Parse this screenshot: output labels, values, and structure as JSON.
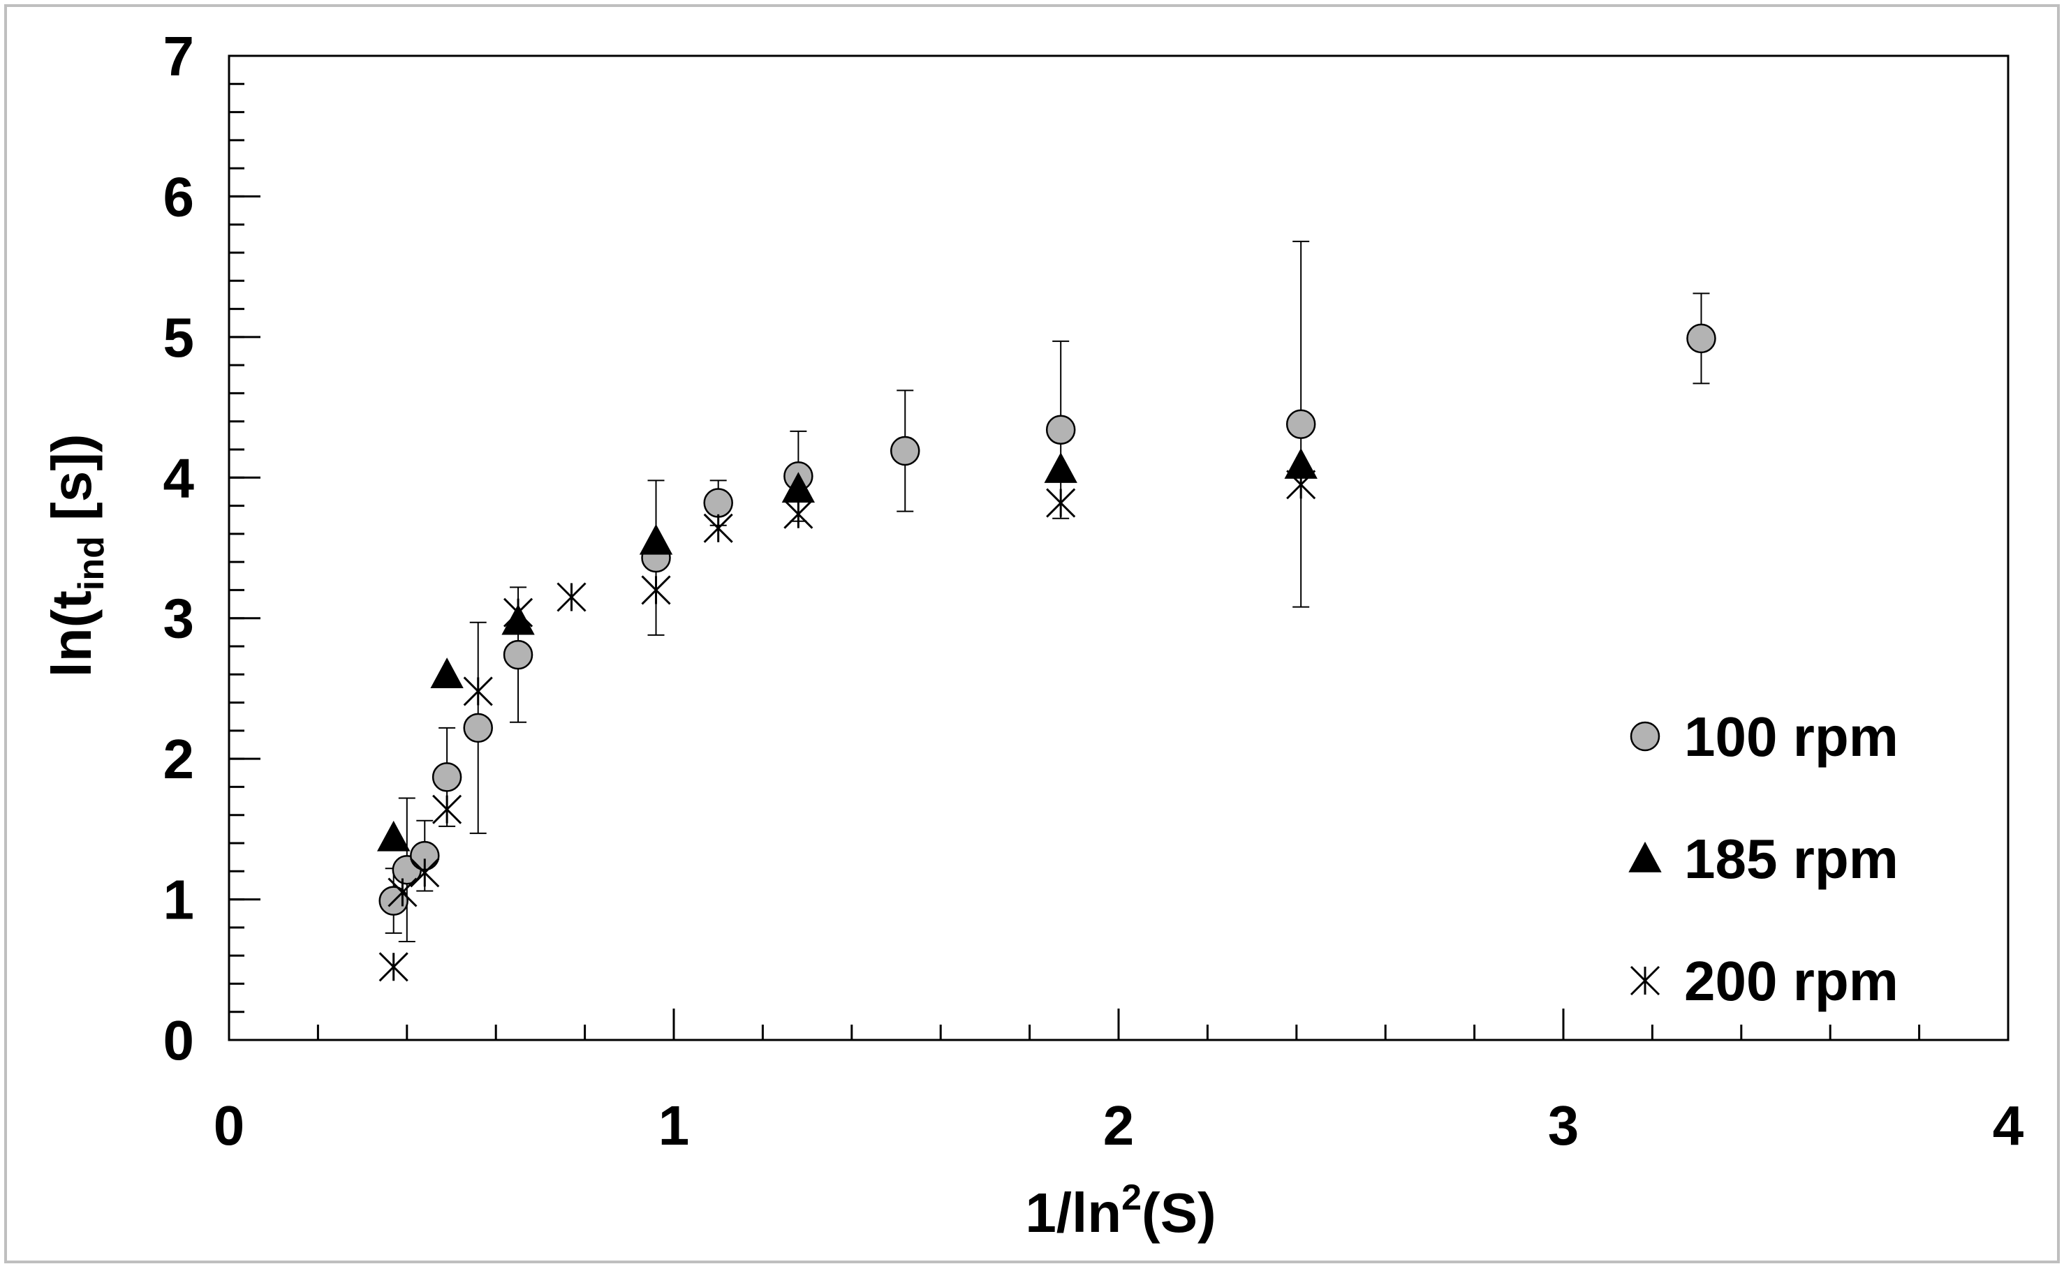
{
  "chart_data": {
    "type": "scatter",
    "xlabel": {
      "main": "1/ln",
      "sup": "2",
      "tail": "(S)"
    },
    "ylabel": {
      "main": "ln(t",
      "sub": "ind",
      "tail": " [s])"
    },
    "xlim": [
      0,
      4
    ],
    "ylim": [
      0,
      7
    ],
    "x_ticks": [
      0,
      1,
      2,
      3,
      4
    ],
    "y_ticks": [
      0,
      1,
      2,
      3,
      4,
      5,
      6,
      7
    ],
    "x_tick_labels": [
      "0",
      "1",
      "2",
      "3",
      "4"
    ],
    "y_tick_labels": [
      "0",
      "1",
      "2",
      "3",
      "4",
      "5",
      "6",
      "7"
    ],
    "x_minor_step": 0.2,
    "y_minor_step": 0.2,
    "grid": false,
    "legend_position": "bottom-right",
    "series": [
      {
        "name": "100 rpm",
        "marker": "circle",
        "fill": "#b3b3b3",
        "points": [
          {
            "x": 0.37,
            "y": 0.99,
            "err_lo": 0.23,
            "err_hi": 0.23
          },
          {
            "x": 0.4,
            "y": 1.21,
            "err_lo": 0.51,
            "err_hi": 0.51
          },
          {
            "x": 0.44,
            "y": 1.31,
            "err_lo": 0.25,
            "err_hi": 0.25
          },
          {
            "x": 0.49,
            "y": 1.87,
            "err_lo": 0.35,
            "err_hi": 0.35
          },
          {
            "x": 0.56,
            "y": 2.22,
            "err_lo": 0.75,
            "err_hi": 0.75
          },
          {
            "x": 0.65,
            "y": 2.74,
            "err_lo": 0.48,
            "err_hi": 0.48
          },
          {
            "x": 0.96,
            "y": 3.43,
            "err_lo": 0.55,
            "err_hi": 0.55
          },
          {
            "x": 1.1,
            "y": 3.82,
            "err_lo": 0.16,
            "err_hi": 0.16
          },
          {
            "x": 1.28,
            "y": 4.01,
            "err_lo": 0.32,
            "err_hi": 0.32
          },
          {
            "x": 1.52,
            "y": 4.19,
            "err_lo": 0.43,
            "err_hi": 0.43
          },
          {
            "x": 1.87,
            "y": 4.34,
            "err_lo": 0.63,
            "err_hi": 0.63
          },
          {
            "x": 2.41,
            "y": 4.38,
            "err_lo": 1.3,
            "err_hi": 1.3
          },
          {
            "x": 3.31,
            "y": 4.99,
            "err_lo": 0.32,
            "err_hi": 0.32
          }
        ]
      },
      {
        "name": "185 rpm",
        "marker": "triangle",
        "fill": "#000000",
        "points": [
          {
            "x": 0.37,
            "y": 1.44
          },
          {
            "x": 0.49,
            "y": 2.6
          },
          {
            "x": 0.65,
            "y": 2.98
          },
          {
            "x": 0.96,
            "y": 3.55
          },
          {
            "x": 1.28,
            "y": 3.92
          },
          {
            "x": 1.87,
            "y": 4.06
          },
          {
            "x": 2.41,
            "y": 4.09
          }
        ]
      },
      {
        "name": "200 rpm",
        "marker": "asterisk",
        "fill": "#000000",
        "points": [
          {
            "x": 0.37,
            "y": 0.52
          },
          {
            "x": 0.39,
            "y": 1.05
          },
          {
            "x": 0.44,
            "y": 1.19
          },
          {
            "x": 0.49,
            "y": 1.64
          },
          {
            "x": 0.56,
            "y": 2.48
          },
          {
            "x": 0.65,
            "y": 3.04
          },
          {
            "x": 0.77,
            "y": 3.15
          },
          {
            "x": 0.96,
            "y": 3.2
          },
          {
            "x": 1.1,
            "y": 3.64
          },
          {
            "x": 1.28,
            "y": 3.74
          },
          {
            "x": 1.87,
            "y": 3.82
          },
          {
            "x": 2.41,
            "y": 3.95
          }
        ]
      }
    ]
  }
}
